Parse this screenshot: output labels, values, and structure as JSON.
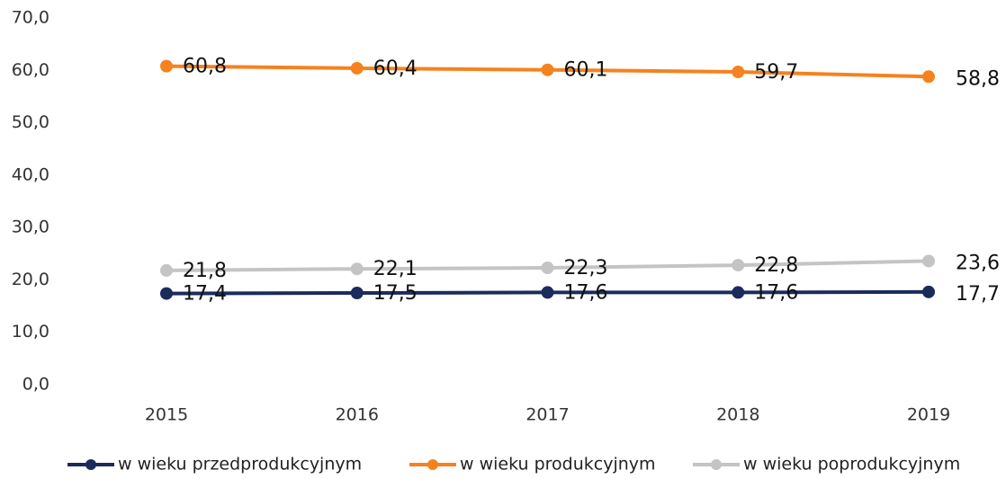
{
  "chart_data": {
    "type": "line",
    "categories": [
      "2015",
      "2016",
      "2017",
      "2018",
      "2019"
    ],
    "series": [
      {
        "name": "w wieku przedprodukcyjnym",
        "color": "#1b2b5c",
        "values": [
          17.4,
          17.5,
          17.6,
          17.6,
          17.7
        ],
        "value_labels": [
          "17,4",
          "17,5",
          "17,6",
          "17,6",
          "17,7"
        ]
      },
      {
        "name": "w wieku produkcyjnym",
        "color": "#f5821f",
        "values": [
          60.8,
          60.4,
          60.1,
          59.7,
          58.8
        ],
        "value_labels": [
          "60,8",
          "60,4",
          "60,1",
          "59,7",
          "58,8"
        ]
      },
      {
        "name": "w wieku poprodukcyjnym",
        "color": "#c4c4c4",
        "values": [
          21.8,
          22.1,
          22.3,
          22.8,
          23.6
        ],
        "value_labels": [
          "21,8",
          "22,1",
          "22,3",
          "22,8",
          "23,6"
        ]
      }
    ],
    "ylim": [
      0,
      70
    ],
    "yticks": [
      {
        "value": 0,
        "label": "0,0"
      },
      {
        "value": 10,
        "label": "10,0"
      },
      {
        "value": 20,
        "label": "20,0"
      },
      {
        "value": 30,
        "label": "30,0"
      },
      {
        "value": 40,
        "label": "40,0"
      },
      {
        "value": 50,
        "label": "50,0"
      },
      {
        "value": 60,
        "label": "60,0"
      },
      {
        "value": 70,
        "label": "70,0"
      }
    ],
    "grid": false
  }
}
